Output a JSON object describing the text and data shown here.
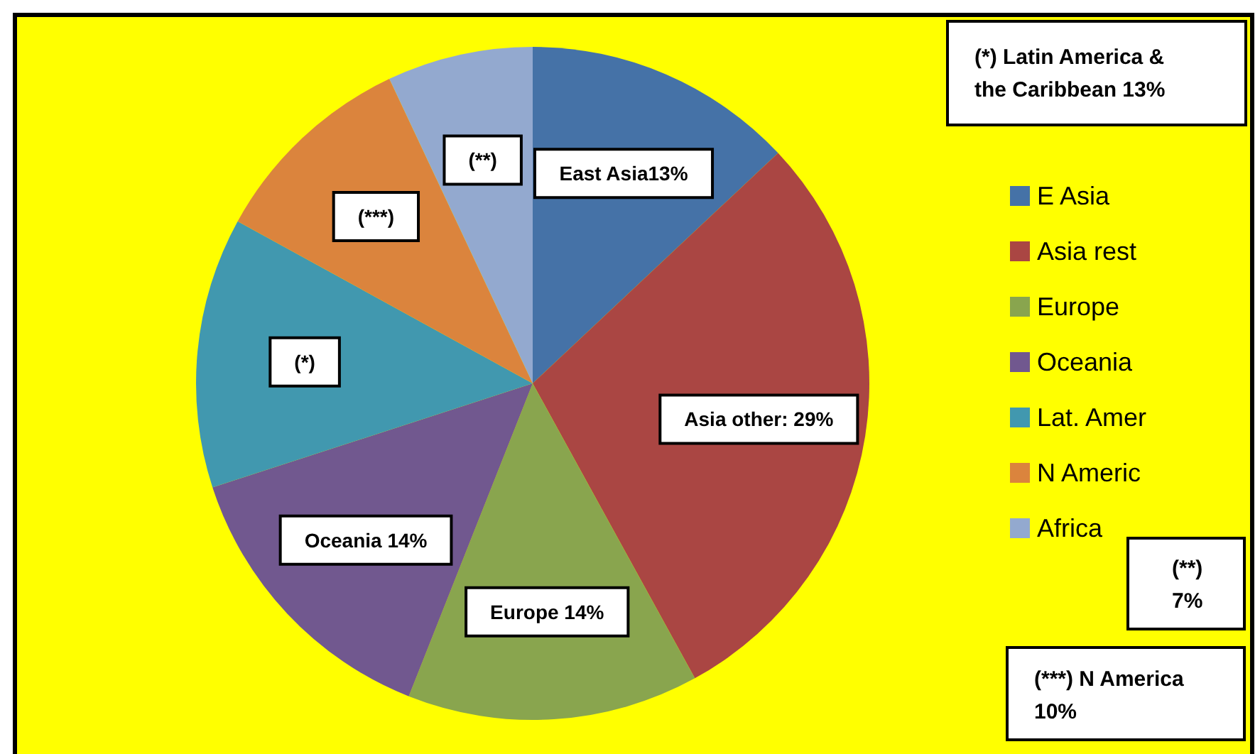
{
  "chart_data": {
    "type": "pie",
    "categories": [
      "E Asia",
      "Asia rest",
      "Europe",
      "Oceania",
      "Lat. Amer",
      "N Americ",
      "Africa"
    ],
    "values": [
      13,
      29,
      14,
      14,
      13,
      10,
      7
    ],
    "colors": [
      "#4572a7",
      "#aa4643",
      "#89a54e",
      "#71588f",
      "#4198af",
      "#db843d",
      "#93a9cf"
    ],
    "value_labels": [
      "East Asia13%",
      "Asia other: 29%",
      "Europe 14%",
      "Oceania 14%",
      "(*)",
      "(***)",
      "(**)"
    ],
    "annotations": [
      "(*) Latin America & the Caribbean 13%",
      "(**) 7%",
      "(***) N America 10%"
    ],
    "legend": "right"
  }
}
